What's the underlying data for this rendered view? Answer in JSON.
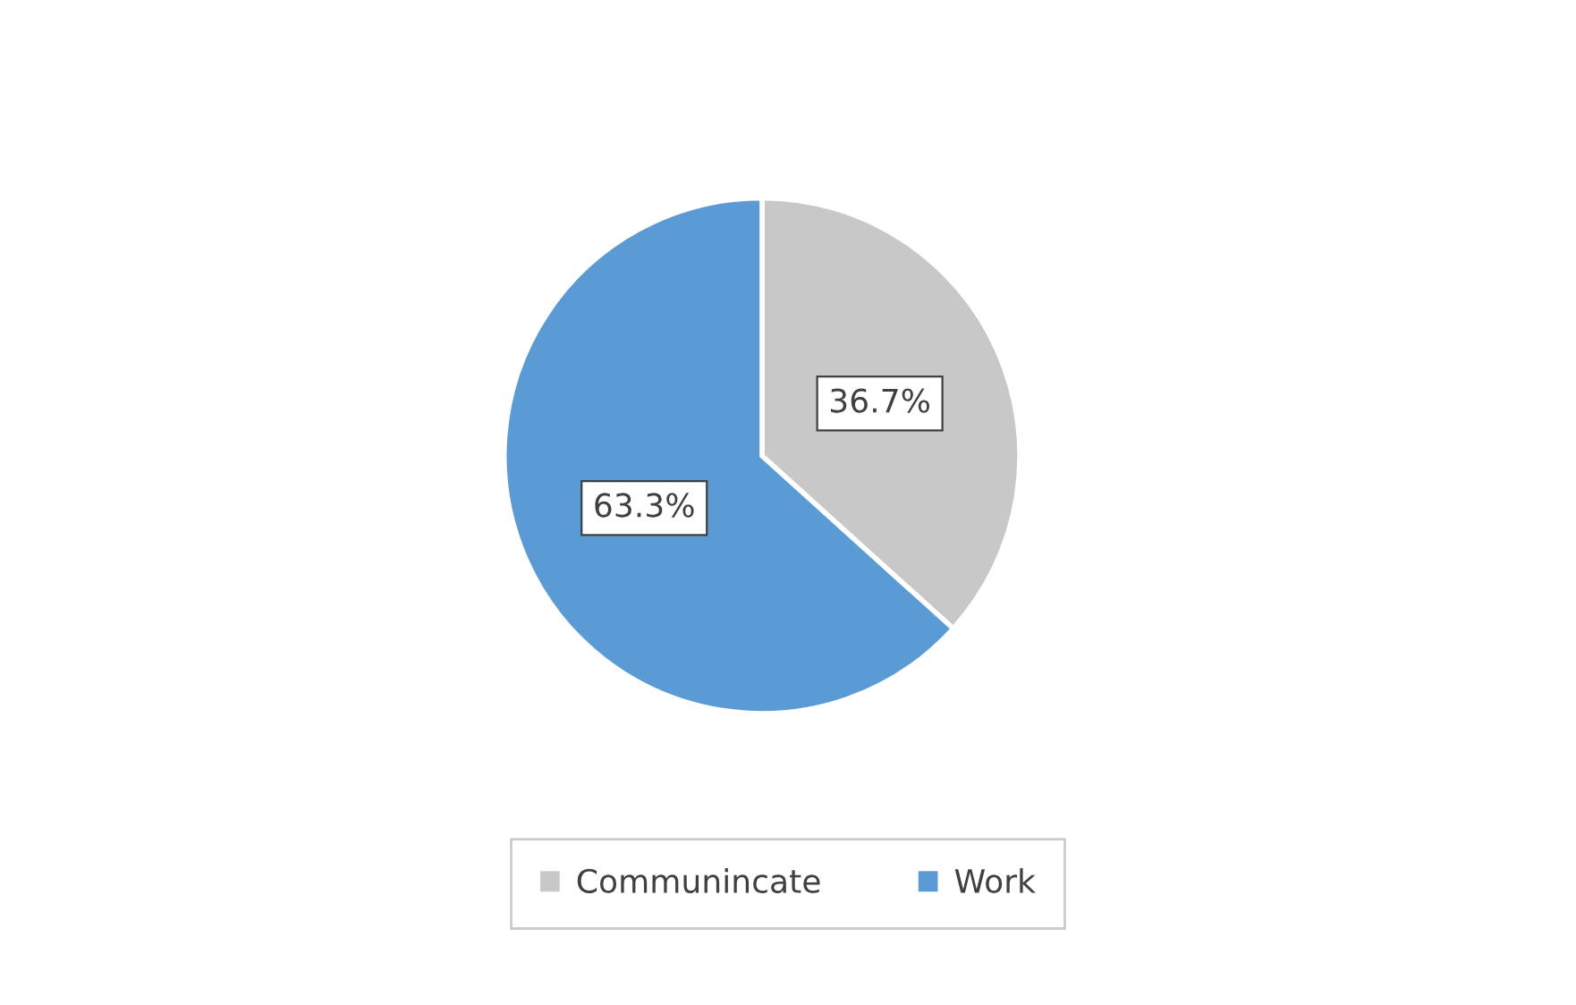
{
  "chart_data": {
    "type": "pie",
    "categories": [
      "Communincate",
      "Work"
    ],
    "values": [
      36.7,
      63.3
    ],
    "colors": [
      "#c8c8c8",
      "#5b9bd5"
    ],
    "value_labels": [
      "36.7%",
      "63.3%"
    ],
    "legend": "bottom"
  }
}
